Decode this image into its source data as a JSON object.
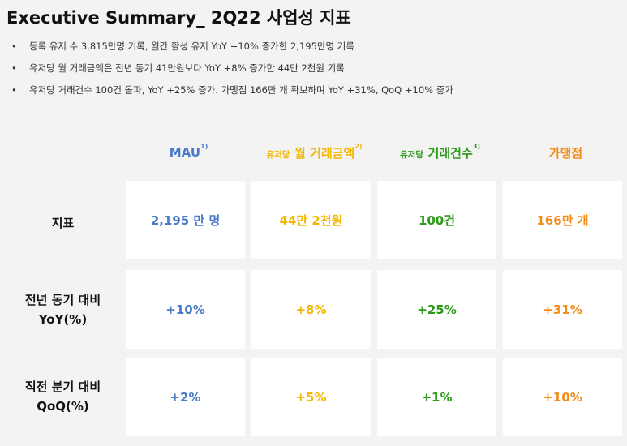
{
  "title": "Executive Summary_ 2Q22 사업성 지표",
  "bullets": [
    "등록 유저 수 3,815만명 기록, 월간 활성 유저 YoY +10% 증가한 2,195만명 기록",
    "유저당 월 거래금액은 전년 동기 41만원보다 YoY +8% 증가한 44만 2천원 기록",
    "유저당 거래건수 100건 돌파, YoY +25% 증가. 가맹점 166만 개 확보하며 YoY +31%, QoQ +10% 증가"
  ],
  "bullet_symbol": "•",
  "columns": [
    {
      "prefix": "",
      "label": "MAU",
      "sup": "1)",
      "color": "#4a7ac8"
    },
    {
      "prefix": "유저당",
      "label": "월 거래금액",
      "sup": "2)",
      "color": "#f2b705"
    },
    {
      "prefix": "유저당",
      "label": "거래건수",
      "sup": "3)",
      "color": "#2e9a1a"
    },
    {
      "prefix": "",
      "label": "가맹점",
      "sup": "",
      "color": "#f28c1b"
    }
  ],
  "rows": [
    {
      "label_line1": "지표",
      "label_line2": "",
      "values": [
        "2,195 만 명",
        "44만 2천원",
        "100건",
        "166만 개"
      ]
    },
    {
      "label_line1": "전년 동기 대비",
      "label_line2": "YoY(%)",
      "values": [
        "+10%",
        "+8%",
        "+25%",
        "+31%"
      ]
    },
    {
      "label_line1": "직전 분기 대비",
      "label_line2": "QoQ(%)",
      "values": [
        "+2%",
        "+5%",
        "+1%",
        "+10%"
      ]
    }
  ]
}
